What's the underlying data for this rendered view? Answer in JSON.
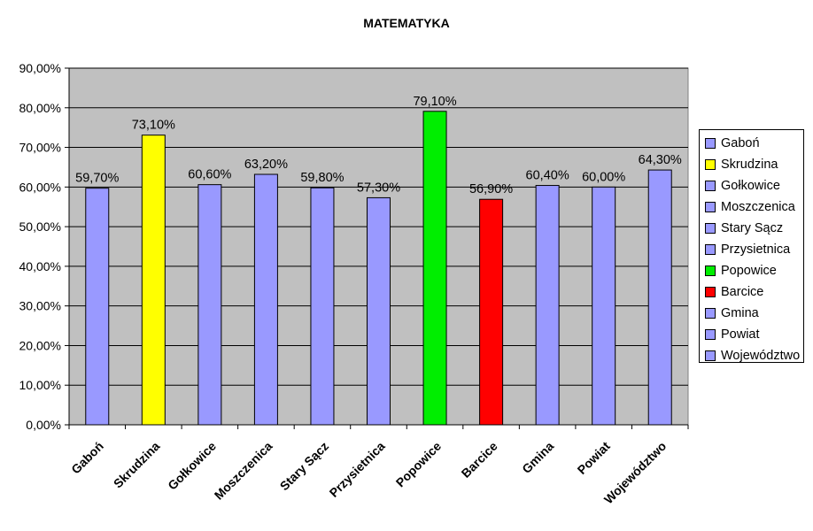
{
  "chart_data": {
    "type": "bar",
    "title": "MATEMATYKA",
    "xlabel": "",
    "ylabel": "",
    "categories": [
      "Gaboń",
      "Skrudzina",
      "Gołkowice",
      "Moszczenica",
      "Stary Sącz",
      "Przysietnica",
      "Popowice",
      "Barcice",
      "Gmina",
      "Powiat",
      "Województwo"
    ],
    "values": [
      59.7,
      73.1,
      60.6,
      63.2,
      59.8,
      57.3,
      79.1,
      56.9,
      60.4,
      60.0,
      64.3
    ],
    "data_labels": [
      "59,70%",
      "73,10%",
      "60,60%",
      "63,20%",
      "59,80%",
      "57,30%",
      "79,10%",
      "56,90%",
      "60,40%",
      "60,00%",
      "64,30%"
    ],
    "colors": [
      "#9999ff",
      "#ffff00",
      "#9999ff",
      "#9999ff",
      "#9999ff",
      "#9999ff",
      "#00ee00",
      "#ff0000",
      "#9999ff",
      "#9999ff",
      "#9999ff"
    ],
    "ylim": [
      0,
      90
    ],
    "yticks": [
      0,
      10,
      20,
      30,
      40,
      50,
      60,
      70,
      80,
      90
    ],
    "ytick_labels": [
      "0,00%",
      "10,00%",
      "20,00%",
      "30,00%",
      "40,00%",
      "50,00%",
      "60,00%",
      "70,00%",
      "80,00%",
      "90,00%"
    ],
    "plot_background": "#c0c0c0",
    "grid": true,
    "legend_position": "right"
  }
}
